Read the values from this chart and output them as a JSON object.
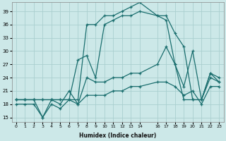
{
  "xlabel": "Humidex (Indice chaleur)",
  "bg_color": "#cce8e8",
  "grid_color": "#aacfcf",
  "line_color": "#1a6e6e",
  "xlim": [
    -0.5,
    23.5
  ],
  "ylim": [
    14,
    41
  ],
  "xticks": [
    0,
    1,
    2,
    3,
    4,
    5,
    6,
    7,
    8,
    9,
    10,
    11,
    12,
    13,
    14,
    16,
    17,
    18,
    19,
    20,
    21,
    22,
    23
  ],
  "xtick_labels": [
    "0",
    "1",
    "2",
    "3",
    "4",
    "5",
    "6",
    "7",
    "8",
    "9",
    "10",
    "11",
    "12",
    "13",
    "14",
    "16",
    "17",
    "18",
    "19",
    "20",
    "21",
    "22",
    "23"
  ],
  "yticks": [
    15,
    18,
    21,
    24,
    27,
    30,
    33,
    36,
    39
  ],
  "series": [
    {
      "x": [
        0,
        1,
        2,
        3,
        4,
        5,
        6,
        7,
        8,
        9,
        10,
        11,
        12,
        13,
        14,
        16,
        17,
        18,
        19,
        20,
        21,
        22,
        23
      ],
      "y": [
        19,
        19,
        19,
        19,
        19,
        19,
        19,
        19,
        36,
        36,
        38,
        38,
        39,
        40,
        41,
        38,
        38,
        34,
        31,
        19,
        19,
        25,
        23
      ]
    },
    {
      "x": [
        0,
        1,
        2,
        3,
        4,
        5,
        6,
        7,
        8,
        9,
        10,
        11,
        12,
        13,
        14,
        16,
        17,
        18,
        19,
        20,
        21,
        22,
        23
      ],
      "y": [
        19,
        19,
        19,
        19,
        19,
        19,
        19,
        28,
        29,
        24,
        36,
        37,
        38,
        38,
        39,
        38,
        37,
        27,
        19,
        19,
        19,
        24,
        23
      ]
    },
    {
      "x": [
        0,
        1,
        2,
        3,
        4,
        5,
        6,
        7,
        8,
        9,
        10,
        11,
        12,
        13,
        14,
        16,
        17,
        18,
        19,
        20,
        21,
        22,
        23
      ],
      "y": [
        19,
        19,
        19,
        15,
        19,
        18,
        21,
        18,
        24,
        23,
        23,
        24,
        24,
        25,
        25,
        27,
        31,
        27,
        22,
        30,
        19,
        25,
        24
      ]
    },
    {
      "x": [
        0,
        1,
        2,
        3,
        4,
        5,
        6,
        7,
        8,
        9,
        10,
        11,
        12,
        13,
        14,
        16,
        17,
        18,
        19,
        20,
        21,
        22,
        23
      ],
      "y": [
        18,
        18,
        18,
        15,
        18,
        17,
        19,
        18,
        20,
        20,
        20,
        21,
        21,
        22,
        22,
        23,
        23,
        22,
        20,
        21,
        18,
        22,
        22
      ]
    }
  ]
}
